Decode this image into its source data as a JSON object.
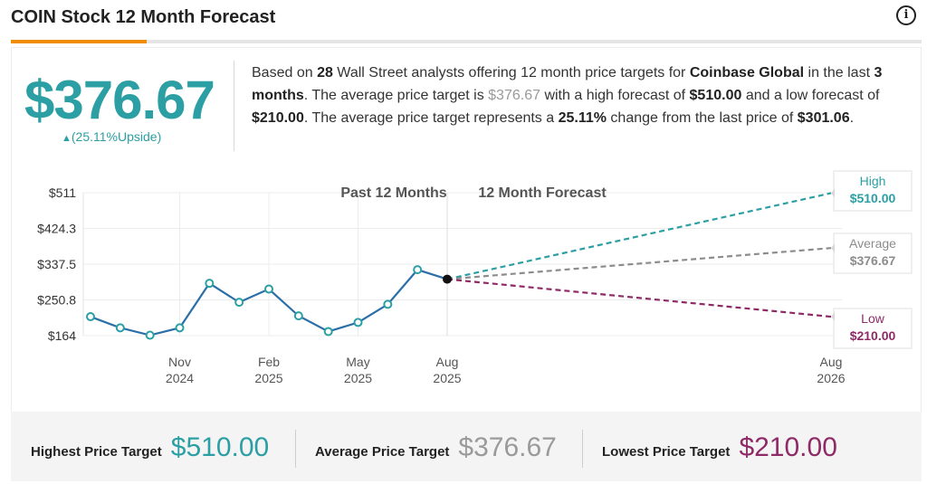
{
  "header": {
    "title": "COIN Stock 12 Month Forecast",
    "info_icon": "info-icon"
  },
  "summary": {
    "price": "$376.67",
    "upside": "(25.11%Upside)",
    "text": {
      "t1": "Based on ",
      "analysts": "28",
      "t2": " Wall Street analysts offering 12 month price targets for ",
      "company": "Coinbase Global",
      "t3": " in the last ",
      "period": "3 months",
      "t4": ". The average price target is ",
      "avg": "$376.67",
      "t5": " with a high forecast of ",
      "high": "$510.00",
      "t6": " and a low forecast of ",
      "low": "$210.00",
      "t7": ". The average price target represents a ",
      "change": "25.11%",
      "t8": " change from the last price of ",
      "last": "$301.06",
      "t9": "."
    }
  },
  "colors": {
    "teal": "#2b9fa3",
    "gray": "#8c8c8c",
    "plum": "#8e2a66",
    "line": "#2b6fa8",
    "orange": "#f08c00"
  },
  "chart_data": {
    "type": "line",
    "legend": {
      "past": "Past 12 Months",
      "forecast": "12 Month Forecast"
    },
    "y_ticks": [
      {
        "label": "$511",
        "value": 511
      },
      {
        "label": "$424.3",
        "value": 424.3
      },
      {
        "label": "$337.5",
        "value": 337.5
      },
      {
        "label": "$250.8",
        "value": 250.8
      },
      {
        "label": "$164",
        "value": 164
      }
    ],
    "ylim": [
      164,
      511
    ],
    "x_ticks": [
      {
        "line1": "Nov",
        "line2": "2024",
        "month": 3
      },
      {
        "line1": "Feb",
        "line2": "2025",
        "month": 6
      },
      {
        "line1": "May",
        "line2": "2025",
        "month": 9
      },
      {
        "line1": "Aug",
        "line2": "2025",
        "month": 12
      },
      {
        "line1": "Aug",
        "line2": "2026",
        "month": 24
      }
    ],
    "history": [
      {
        "month": 0,
        "value": 210
      },
      {
        "month": 1,
        "value": 183
      },
      {
        "month": 2,
        "value": 165
      },
      {
        "month": 3,
        "value": 183
      },
      {
        "month": 4,
        "value": 291
      },
      {
        "month": 5,
        "value": 245
      },
      {
        "month": 6,
        "value": 277
      },
      {
        "month": 7,
        "value": 212
      },
      {
        "month": 8,
        "value": 174
      },
      {
        "month": 9,
        "value": 196
      },
      {
        "month": 10,
        "value": 240
      },
      {
        "month": 11,
        "value": 324
      },
      {
        "month": 12,
        "value": 301.06
      }
    ],
    "forecast": [
      {
        "name": "High",
        "label": "High",
        "value_label": "$510.00",
        "value": 510,
        "color": "#2b9fa3"
      },
      {
        "name": "Average",
        "label": "Average",
        "value_label": "$376.67",
        "value": 376.67,
        "color": "#8c8c8c"
      },
      {
        "name": "Low",
        "label": "Low",
        "value_label": "$210.00",
        "value": 210,
        "color": "#8e2a66"
      }
    ]
  },
  "bottom": {
    "highest_label": "Highest Price Target",
    "highest_value": "$510.00",
    "average_label": "Average Price Target",
    "average_value": "$376.67",
    "lowest_label": "Lowest Price Target",
    "lowest_value": "$210.00"
  }
}
